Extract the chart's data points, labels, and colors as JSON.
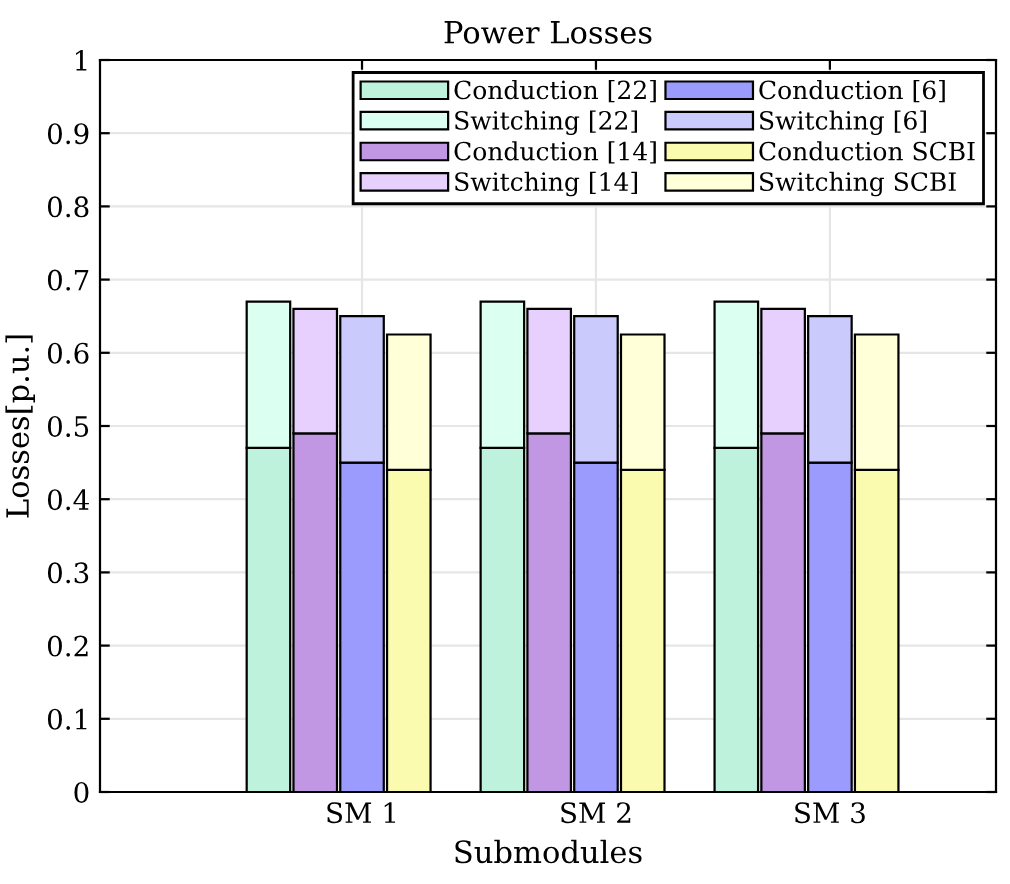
{
  "chart_data": {
    "type": "bar",
    "title": "Power Losses",
    "xlabel": "Submodules",
    "ylabel": "Losses[p.u.]",
    "stacked": true,
    "categories": [
      null,
      null,
      "SM 1",
      null,
      null,
      null,
      null,
      "SM 2",
      null,
      null,
      null,
      null,
      "SM 3",
      null
    ],
    "series": [
      {
        "name": "Conduction [22]",
        "color": "#bff2dc",
        "values": [
          0.47,
          null,
          null,
          null,
          null,
          0.47,
          null,
          null,
          null,
          null,
          0.47,
          null,
          null,
          null
        ]
      },
      {
        "name": "Switching [22]",
        "color": "#dbfff0",
        "values": [
          0.2,
          null,
          null,
          null,
          null,
          0.2,
          null,
          null,
          null,
          null,
          0.2,
          null,
          null,
          null
        ]
      },
      {
        "name": "Conduction [14]",
        "color": "#c197e3",
        "values": [
          null,
          0.49,
          null,
          null,
          null,
          null,
          0.49,
          null,
          null,
          null,
          null,
          0.49,
          null,
          null
        ]
      },
      {
        "name": "Switching [14]",
        "color": "#e7d0fd",
        "values": [
          null,
          0.17,
          null,
          null,
          null,
          null,
          0.17,
          null,
          null,
          null,
          null,
          0.17,
          null,
          null
        ]
      },
      {
        "name": "Conduction [6]",
        "color": "#9b9bfd",
        "values": [
          null,
          null,
          0.45,
          null,
          null,
          null,
          null,
          0.45,
          null,
          null,
          null,
          null,
          0.45,
          null
        ]
      },
      {
        "name": "Switching [6]",
        "color": "#cacafd",
        "values": [
          null,
          null,
          0.2,
          null,
          null,
          null,
          null,
          0.2,
          null,
          null,
          null,
          null,
          0.2,
          null
        ]
      },
      {
        "name": "Conduction SCBI",
        "color": "#fbfbb0",
        "values": [
          null,
          null,
          null,
          0.44,
          null,
          null,
          null,
          null,
          0.44,
          null,
          null,
          null,
          null,
          0.44
        ]
      },
      {
        "name": "Switching SCBI",
        "color": "#ffffd8",
        "values": [
          null,
          null,
          null,
          0.185,
          null,
          null,
          null,
          null,
          0.185,
          null,
          null,
          null,
          null,
          0.185
        ]
      }
    ],
    "ylim": [
      0,
      1
    ],
    "yticks": [
      0,
      0.1,
      0.2,
      0.3,
      0.4,
      0.5,
      0.6,
      0.7,
      0.8,
      0.9,
      1
    ],
    "grid": true,
    "legend": "top right"
  }
}
